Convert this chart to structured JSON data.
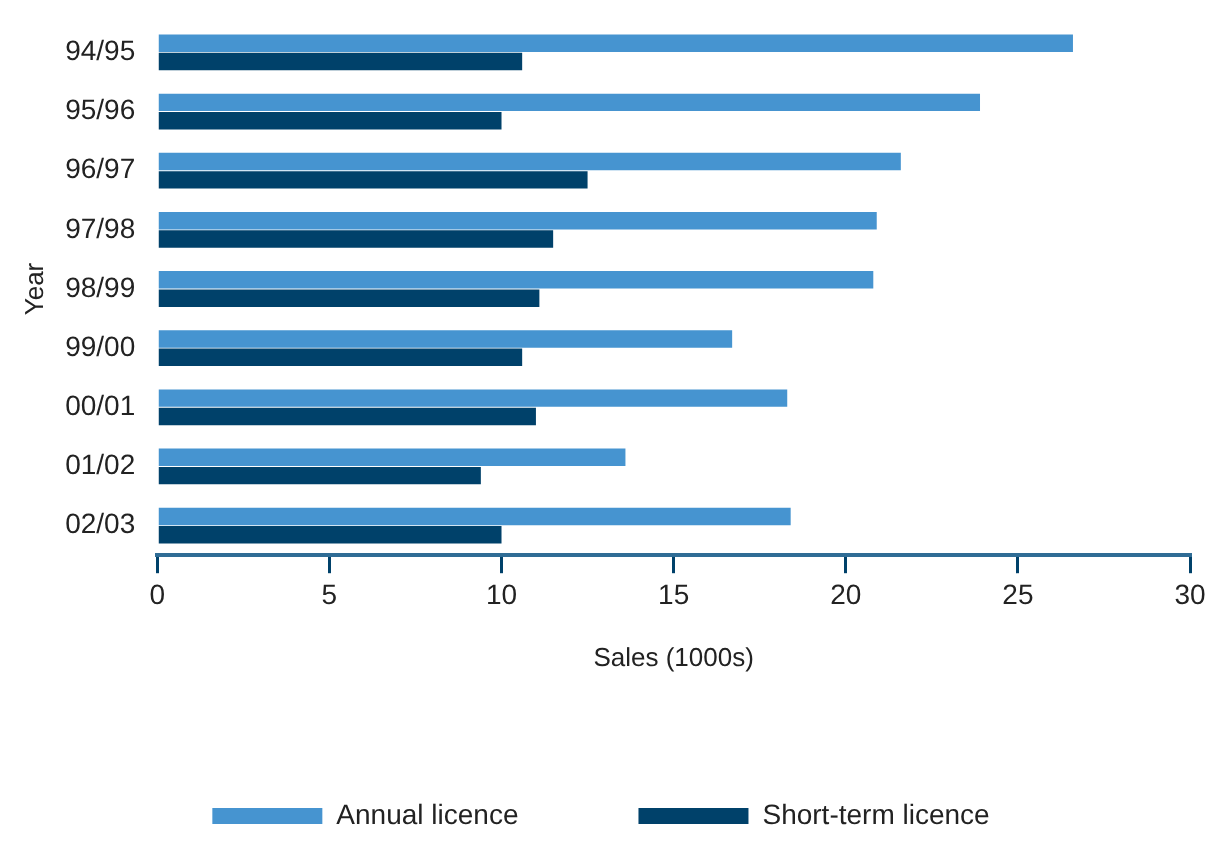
{
  "chart_data": {
    "type": "bar",
    "orientation": "horizontal",
    "xlabel": "Sales (1000s)",
    "ylabel": "Year",
    "categories": [
      "94/95",
      "95/96",
      "96/97",
      "97/98",
      "98/99",
      "99/00",
      "00/01",
      "01/02",
      "02/03"
    ],
    "series": [
      {
        "name": "Annual licence",
        "color": "#4694d0",
        "values": [
          26.6,
          23.9,
          21.6,
          20.9,
          20.8,
          16.7,
          18.3,
          13.6,
          18.4
        ]
      },
      {
        "name": "Short-term licence",
        "color": "#00416a",
        "values": [
          10.6,
          10.0,
          12.5,
          11.5,
          11.1,
          10.6,
          11.0,
          9.4,
          10.0
        ]
      }
    ],
    "xlim": [
      0,
      30
    ],
    "xticks": [
      0,
      5,
      10,
      15,
      20,
      25,
      30
    ],
    "grid": false,
    "legend": "bottom"
  }
}
